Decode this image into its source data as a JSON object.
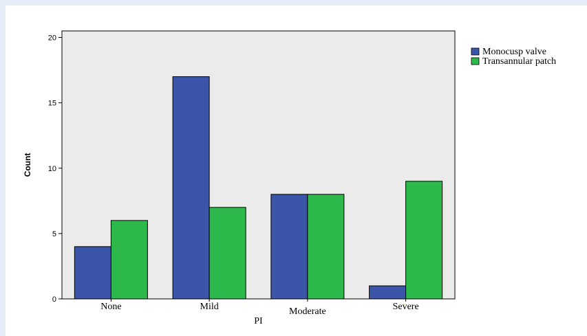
{
  "chart_data": {
    "type": "bar",
    "categories": [
      "None",
      "Mild",
      "Moderate",
      "Severe"
    ],
    "series": [
      {
        "name": "Monocusp valve",
        "values": [
          4,
          17,
          8,
          1
        ]
      },
      {
        "name": "Transannular patch",
        "values": [
          6,
          7,
          8,
          9
        ]
      }
    ],
    "xlabel": "PI",
    "ylabel": "Count",
    "ylim": [
      0,
      20.5
    ],
    "yticks": [
      0,
      5,
      10,
      15,
      20
    ],
    "legend_position": "right",
    "grid": false,
    "colors": {
      "plot_background": "#ebebeb",
      "series": [
        "#3b55a8",
        "#2db84b"
      ]
    }
  }
}
